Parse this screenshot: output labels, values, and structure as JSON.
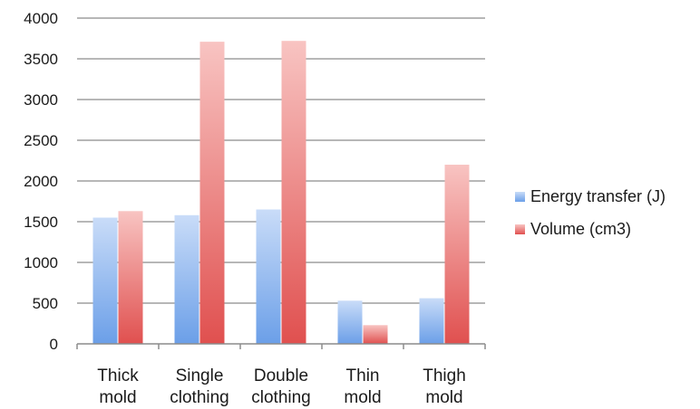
{
  "chart_data": {
    "type": "bar",
    "categories": [
      [
        "Thick",
        "mold"
      ],
      [
        "Single",
        "clothing"
      ],
      [
        "Double",
        "clothing"
      ],
      [
        "Thin",
        "mold"
      ],
      [
        "Thigh",
        "mold"
      ]
    ],
    "series": [
      {
        "name": "Energy transfer (J)",
        "values": [
          1550,
          1580,
          1650,
          530,
          560
        ],
        "color": "#6b9fe8",
        "color_light": "#c9dcf8"
      },
      {
        "name": "Volume (cm3)",
        "values": [
          1630,
          3710,
          3720,
          230,
          2200
        ],
        "color": "#e0504f",
        "color_light": "#f8c4c2"
      }
    ],
    "ylim": [
      0,
      4000
    ],
    "yticks": [
      0,
      500,
      1000,
      1500,
      2000,
      2500,
      3000,
      3500,
      4000
    ],
    "grid": true,
    "legend": "right",
    "title": "",
    "xlabel": "",
    "ylabel": ""
  }
}
